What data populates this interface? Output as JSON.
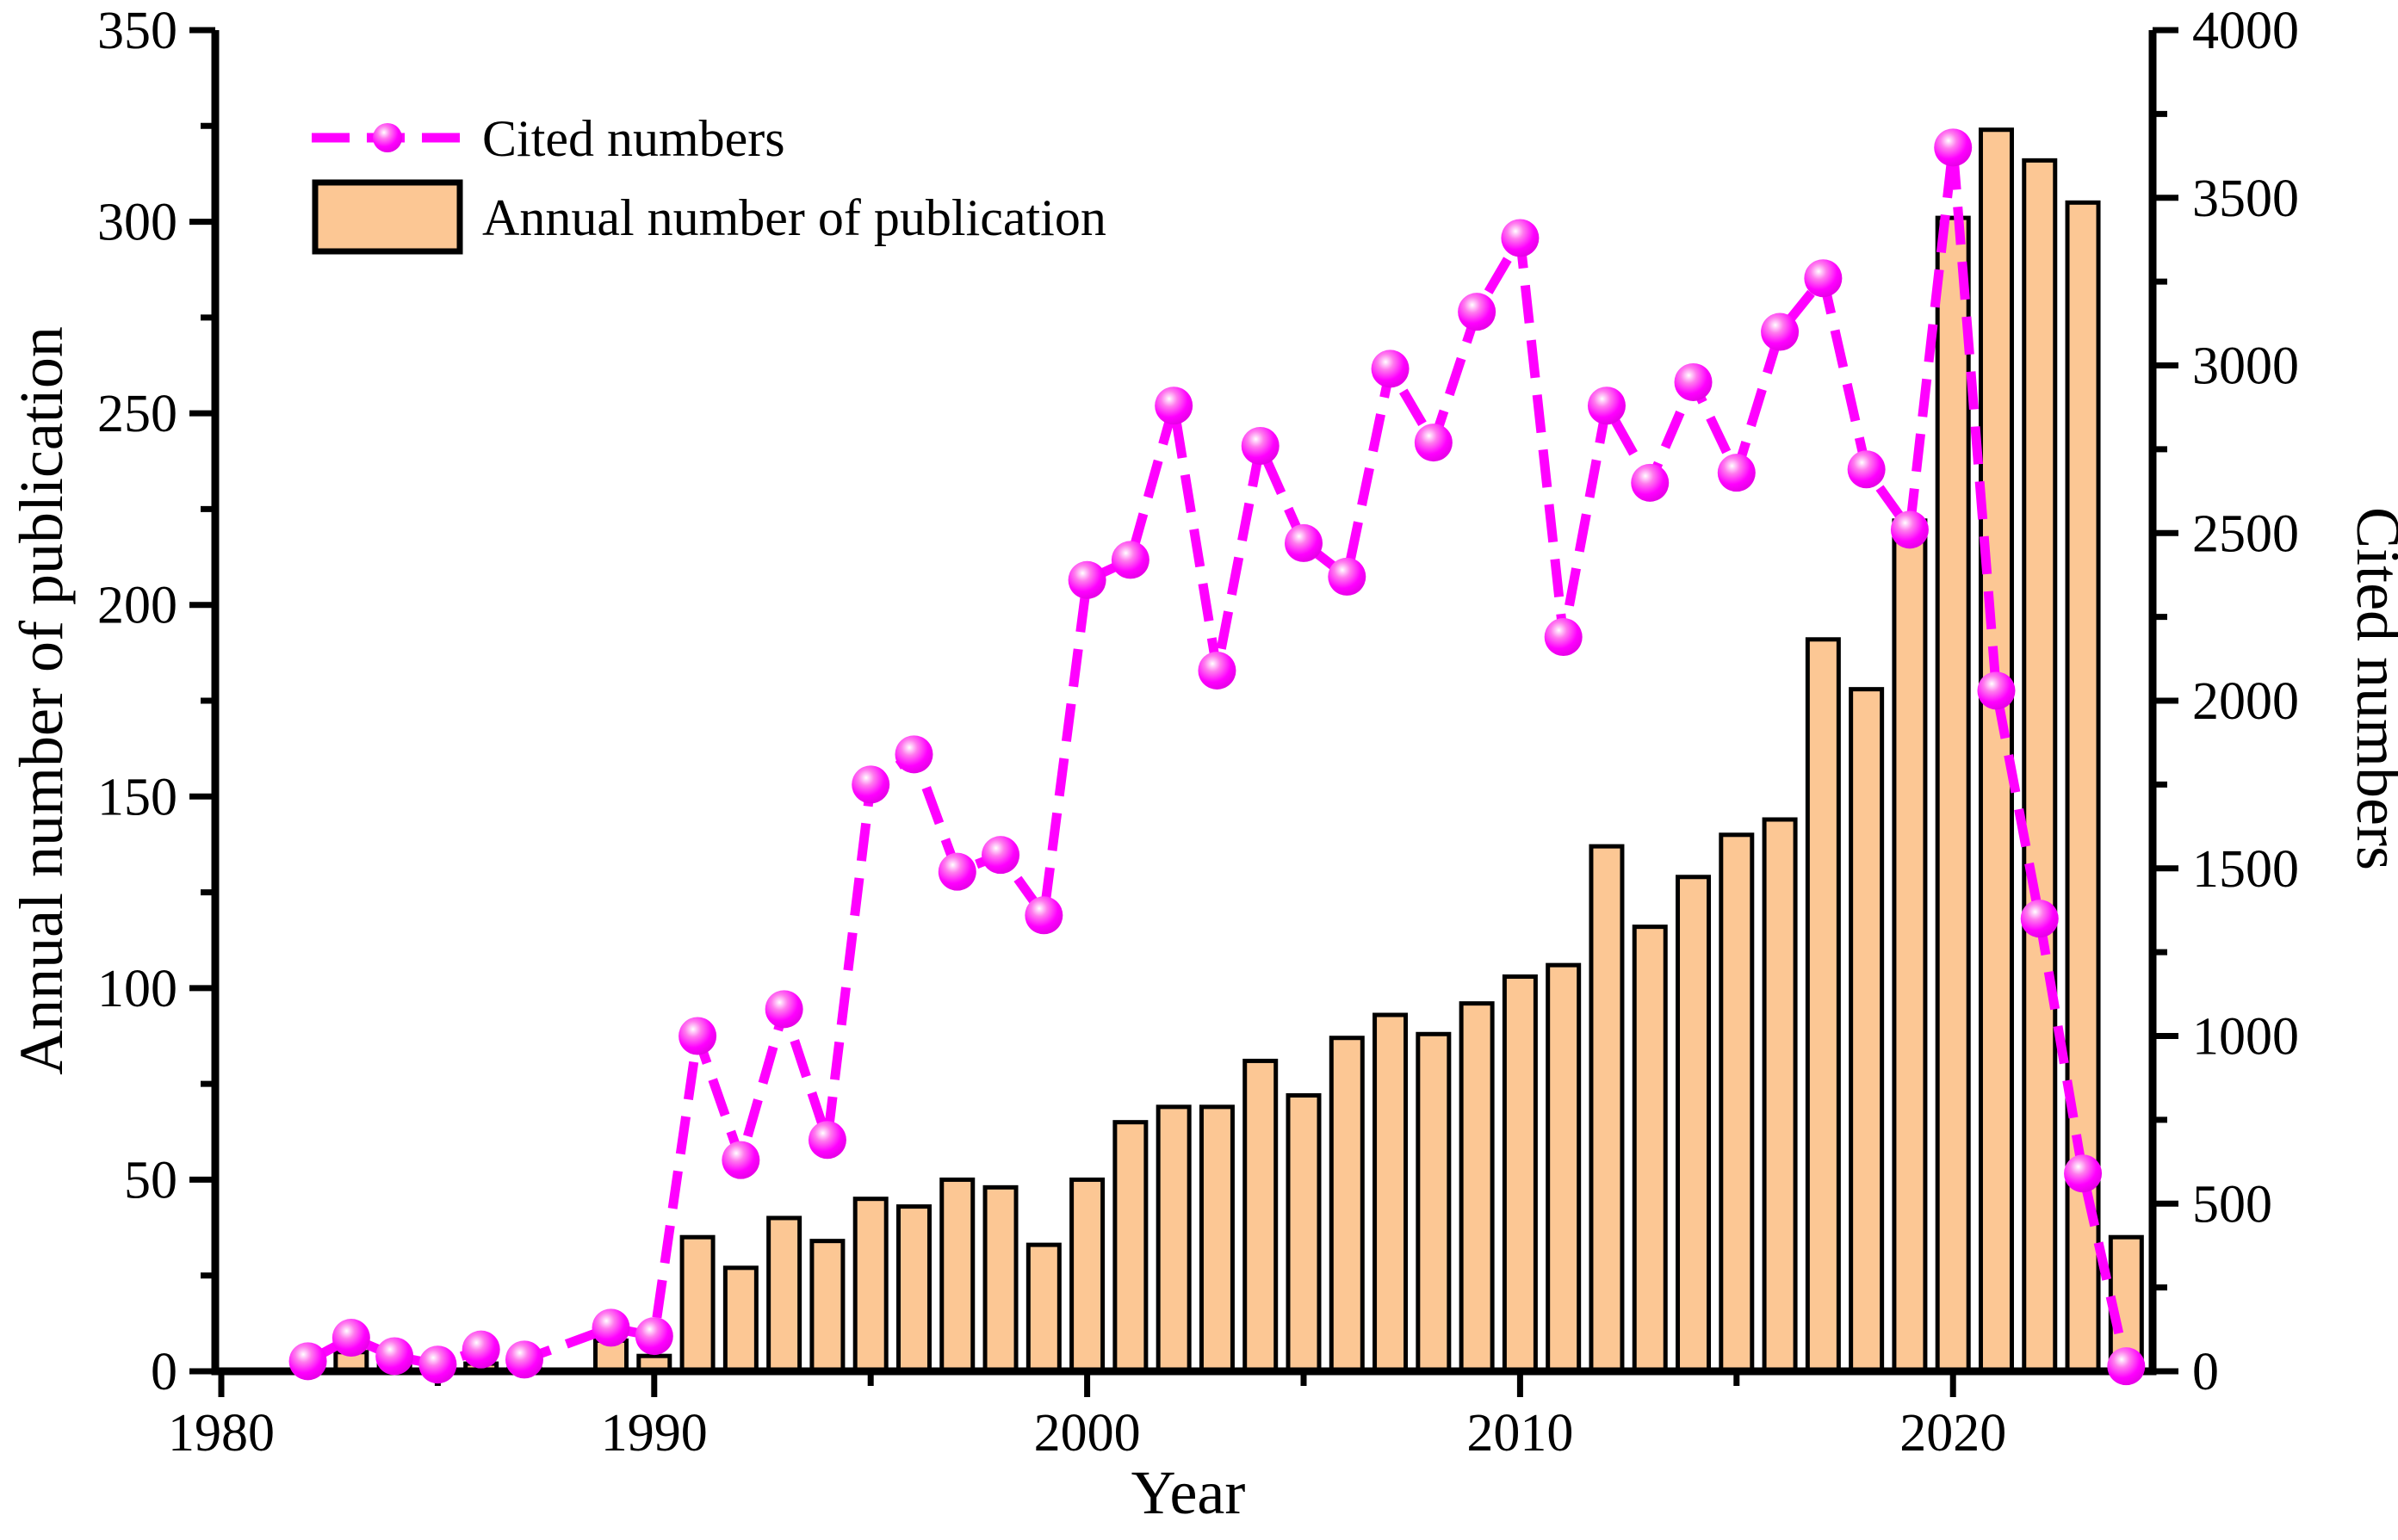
{
  "colors": {
    "line": "#FF00FF",
    "marker_core": "#FFFFFF",
    "marker_mid": "#FF7BEE",
    "marker_edge": "#EE00EE",
    "bar_fill": "#FCC794",
    "bar_stroke": "#000000",
    "axis": "#000000"
  },
  "legend": {
    "items": [
      {
        "label": "Cited numbers",
        "type": "line-marker-sample"
      },
      {
        "label": "Annual number of publication",
        "type": "bar-swatch"
      }
    ]
  },
  "chart_data": {
    "type": "bar",
    "subtype": "dual-axis bar + line",
    "title": "",
    "xlabel": "Year",
    "ylabel_left": "Annual number of publication",
    "ylabel_right": "Cited numbers",
    "xlim": [
      1980,
      2024.8
    ],
    "ylim_left": [
      0,
      350
    ],
    "ylim_right": [
      0,
      4000
    ],
    "x_major_ticks": [
      1980,
      1990,
      2000,
      2010,
      2020
    ],
    "x_minor_ticks": [
      1985,
      1995,
      2005,
      2015
    ],
    "left_axis_ticks": [
      0,
      50,
      100,
      150,
      200,
      250,
      300,
      350
    ],
    "right_axis_ticks": [
      0,
      500,
      1000,
      1500,
      2000,
      2500,
      3000,
      3500,
      4000
    ],
    "grid": "off",
    "legend_position": "top-left-inside",
    "x": [
      1982,
      1983,
      1984,
      1985,
      1986,
      1987,
      1988,
      1989,
      1990,
      1991,
      1992,
      1993,
      1994,
      1995,
      1996,
      1997,
      1998,
      1999,
      2000,
      2001,
      2002,
      2003,
      2004,
      2005,
      2006,
      2007,
      2008,
      2009,
      2010,
      2011,
      2012,
      2013,
      2014,
      2015,
      2016,
      2017,
      2018,
      2019,
      2020,
      2021,
      2022,
      2023,
      2024
    ],
    "series": [
      {
        "name": "Annual number of publication",
        "type": "bar",
        "axis": "left",
        "values": [
          2,
          5,
          2,
          1,
          2,
          1,
          0,
          8,
          4,
          35,
          27,
          40,
          34,
          45,
          43,
          50,
          48,
          33,
          50,
          65,
          69,
          69,
          81,
          72,
          87,
          93,
          88,
          96,
          103,
          106,
          137,
          116,
          129,
          140,
          144,
          191,
          178,
          222,
          301,
          324,
          316,
          305,
          35
        ]
      },
      {
        "name": "Cited numbers",
        "type": "line",
        "axis": "right",
        "values": [
          30,
          100,
          45,
          20,
          65,
          35,
          null,
          130,
          105,
          1000,
          630,
          1080,
          690,
          1750,
          1840,
          1490,
          1540,
          1360,
          2360,
          2420,
          2880,
          2090,
          2760,
          2470,
          2370,
          2990,
          2770,
          3160,
          3380,
          2190,
          2880,
          2650,
          2950,
          2680,
          3100,
          3260,
          2690,
          2510,
          3650,
          2030,
          1350,
          590,
          15
        ]
      }
    ]
  }
}
